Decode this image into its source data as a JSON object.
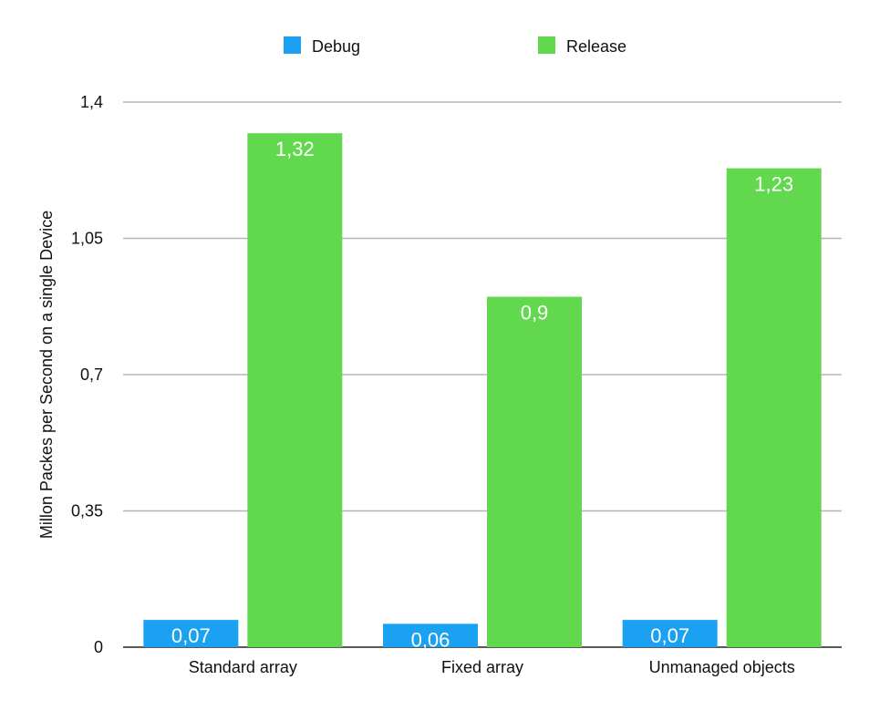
{
  "chart_data": {
    "type": "bar",
    "title": "",
    "xlabel": "",
    "ylabel": "Millon Packes per Second on a single Device",
    "ylim": [
      0,
      1.4
    ],
    "yticks": [
      0,
      0.35,
      0.7,
      1.05,
      1.4
    ],
    "ytick_labels": [
      "0",
      "0,35",
      "0,7",
      "1,05",
      "1,4"
    ],
    "grid": true,
    "legend_position": "top-center",
    "categories": [
      "Standard array",
      "Fixed array",
      "Unmanaged objects"
    ],
    "series": [
      {
        "name": "Debug",
        "color": "#1ba1f2",
        "values": [
          0.07,
          0.06,
          0.07
        ],
        "labels": [
          "0,07",
          "0,06",
          "0,07"
        ]
      },
      {
        "name": "Release",
        "color": "#62d84e",
        "values": [
          1.32,
          0.9,
          1.23
        ],
        "labels": [
          "1,32",
          "0,9",
          "1,23"
        ]
      }
    ]
  }
}
